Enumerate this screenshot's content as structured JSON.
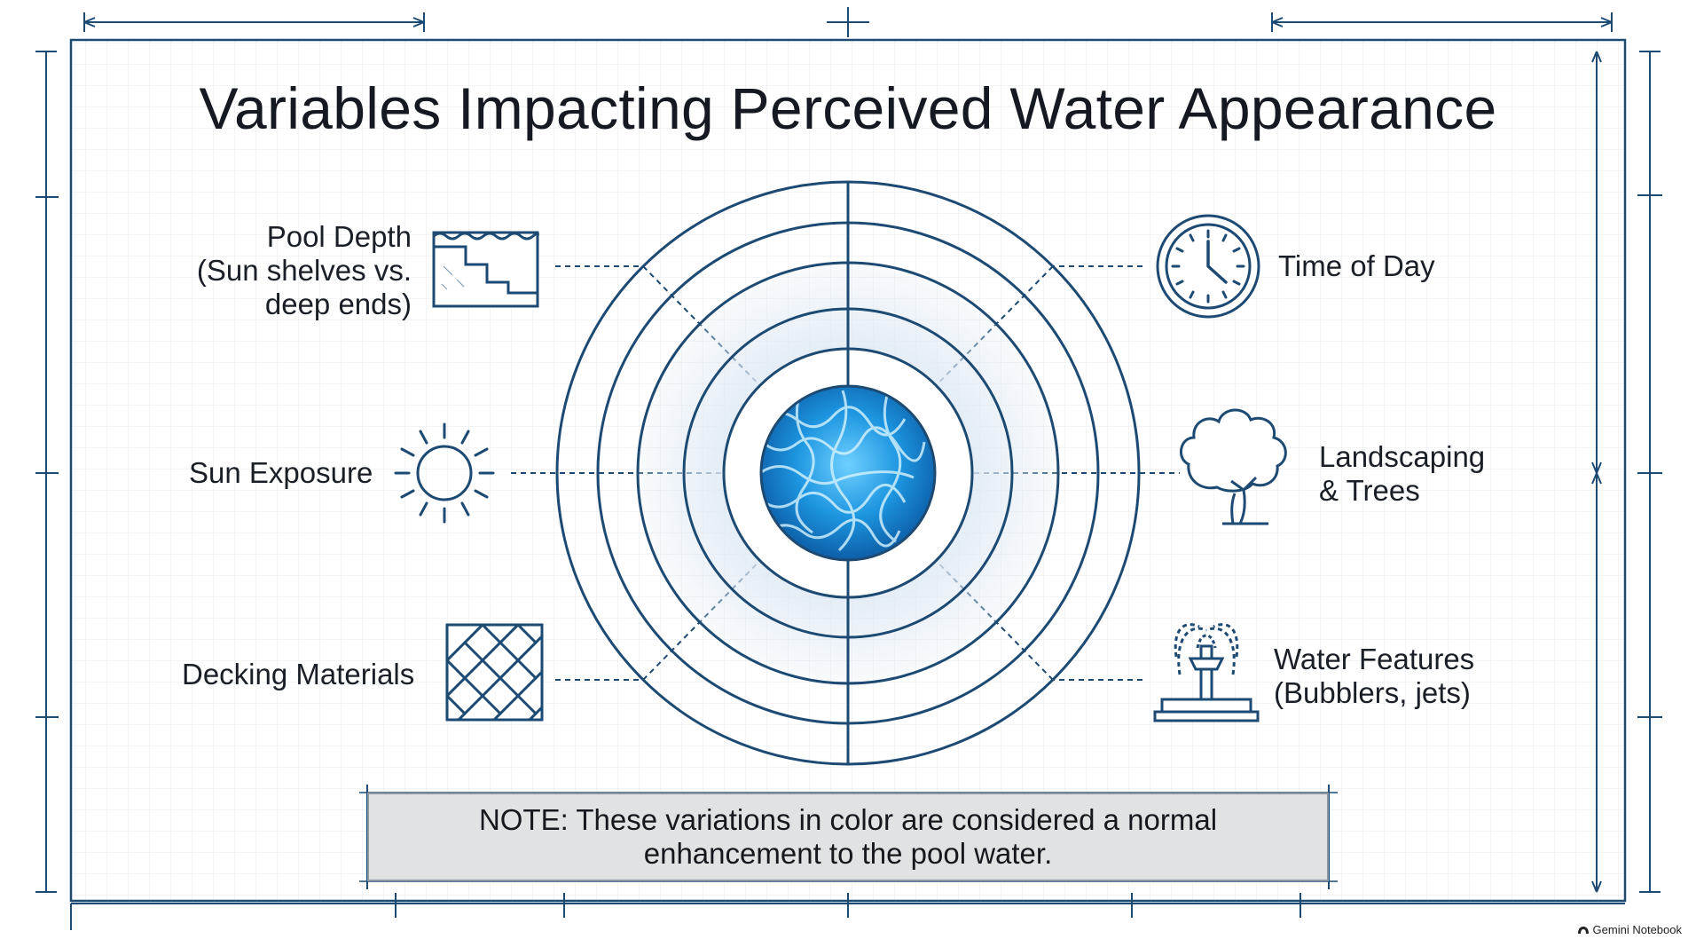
{
  "title": "Variables Impacting Perceived Water Appearance",
  "factors": {
    "pool_depth": {
      "lines": [
        "Pool Depth",
        "(Sun shelves vs.",
        "deep ends)"
      ],
      "icon": "pool-steps-icon"
    },
    "sun_exposure": {
      "lines": [
        "Sun Exposure"
      ],
      "icon": "sun-icon"
    },
    "decking_materials": {
      "lines": [
        "Decking Materials"
      ],
      "icon": "herringbone-deck-icon"
    },
    "time_of_day": {
      "lines": [
        "Time of Day"
      ],
      "icon": "clock-icon"
    },
    "landscaping": {
      "lines": [
        "Landscaping",
        "& Trees"
      ],
      "icon": "tree-icon"
    },
    "water_features": {
      "lines": [
        "Water Features",
        "(Bubblers, jets)"
      ],
      "icon": "fountain-icon"
    }
  },
  "note": {
    "lines": [
      "NOTE: These variations in color are considered a normal",
      "enhancement to the pool water."
    ]
  },
  "brand": "Gemini Notebook",
  "colors": {
    "line": "#1d4a73",
    "grid": "#e3e7ec",
    "water": "#2a9be0",
    "note_bg": "#e1e2e3"
  }
}
